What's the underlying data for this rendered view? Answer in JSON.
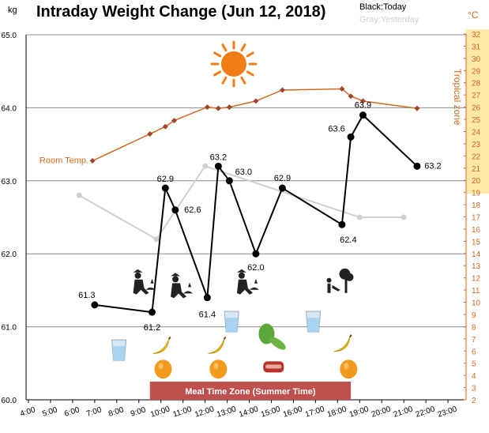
{
  "chart_data": {
    "type": "line",
    "title": "Intraday Weight Change (Jun 12, 2018)",
    "left_unit": "kg",
    "right_unit": "°C",
    "legend": {
      "today": "Black:Today",
      "yesterday": "Gray:Yesterday"
    },
    "left_axis": {
      "range": [
        60.0,
        65.0
      ],
      "ticks": [
        "60.0",
        "61.0",
        "62.0",
        "63.0",
        "64.0",
        "65.0"
      ]
    },
    "right_axis": {
      "range": [
        2,
        32
      ],
      "ticks": [
        "2",
        "3",
        "4",
        "5",
        "6",
        "7",
        "8",
        "9",
        "10",
        "11",
        "12",
        "13",
        "14",
        "15",
        "16",
        "17",
        "18",
        "19",
        "20",
        "21",
        "22",
        "23",
        "24",
        "25",
        "26",
        "27",
        "28",
        "29",
        "30",
        "31",
        "32"
      ]
    },
    "x_axis": {
      "range": [
        4,
        24
      ],
      "ticks": [
        "4:00",
        "5:00",
        "6:00",
        "7:00",
        "8:00",
        "9:00",
        "10:00",
        "11:00",
        "12:00",
        "13:00",
        "14:00",
        "15:00",
        "16:00",
        "17:00",
        "18:00",
        "19:00",
        "20:00",
        "21:00",
        "22:00",
        "23:00"
      ]
    },
    "zones": {
      "tropical": {
        "label": "Tropical zone",
        "from": 18.5,
        "to": 32
      }
    },
    "series": [
      {
        "name": "Today",
        "color": "#000000",
        "points": [
          {
            "x": 7.0,
            "y": 61.3,
            "label": "61.3"
          },
          {
            "x": 9.6,
            "y": 61.2,
            "label": "61.2"
          },
          {
            "x": 10.2,
            "y": 62.9,
            "label": "62.9"
          },
          {
            "x": 10.65,
            "y": 62.6,
            "label": "62.6"
          },
          {
            "x": 12.1,
            "y": 61.4,
            "label": "61.4"
          },
          {
            "x": 12.6,
            "y": 63.2,
            "label": "63.2"
          },
          {
            "x": 13.1,
            "y": 63.0,
            "label": "63.0"
          },
          {
            "x": 14.3,
            "y": 62.0,
            "label": "62.0"
          },
          {
            "x": 15.5,
            "y": 62.9,
            "label": "62.9"
          },
          {
            "x": 18.2,
            "y": 62.4,
            "label": "62.4"
          },
          {
            "x": 18.6,
            "y": 63.6,
            "label": "63.6"
          },
          {
            "x": 19.15,
            "y": 63.9,
            "label": "63.9"
          },
          {
            "x": 21.6,
            "y": 63.2,
            "label": "63.2"
          }
        ]
      },
      {
        "name": "Yesterday",
        "color": "#d0d0d0",
        "points": [
          {
            "x": 6.3,
            "y": 62.8
          },
          {
            "x": 9.8,
            "y": 62.2
          },
          {
            "x": 12.0,
            "y": 63.2
          },
          {
            "x": 19.0,
            "y": 62.5
          },
          {
            "x": 21.0,
            "y": 62.5
          }
        ]
      },
      {
        "name": "Room Temp.",
        "color": "#d2691e",
        "axis": "right",
        "points": [
          {
            "x": 6.9,
            "y": 21.6
          },
          {
            "x": 9.5,
            "y": 23.8
          },
          {
            "x": 10.2,
            "y": 24.4
          },
          {
            "x": 10.6,
            "y": 24.9
          },
          {
            "x": 12.1,
            "y": 26.0
          },
          {
            "x": 12.6,
            "y": 25.9
          },
          {
            "x": 13.1,
            "y": 26.0
          },
          {
            "x": 14.3,
            "y": 26.5
          },
          {
            "x": 15.5,
            "y": 27.4
          },
          {
            "x": 18.2,
            "y": 27.5
          },
          {
            "x": 18.6,
            "y": 26.9
          },
          {
            "x": 19.15,
            "y": 26.5
          },
          {
            "x": 21.6,
            "y": 25.9
          }
        ]
      }
    ],
    "annotations": {
      "room_temp_label": "Room Temp.",
      "mealtime_label": "Meal Time Zone  (Summer Time)",
      "mealtime_zone": [
        9.5,
        18.6
      ]
    },
    "icons": [
      {
        "name": "sun-icon",
        "x": 13.3,
        "y": 64.6
      },
      {
        "name": "gardening-icon",
        "x": 9.1,
        "y": 61.55
      },
      {
        "name": "gardening-icon",
        "x": 10.8,
        "y": 61.5
      },
      {
        "name": "gardening-icon",
        "x": 13.8,
        "y": 61.55
      },
      {
        "name": "tree-watering-icon",
        "x": 17.9,
        "y": 61.55
      },
      {
        "name": "water-glass-icon",
        "x": 8.1,
        "y": 60.68
      },
      {
        "name": "water-glass-icon",
        "x": 13.2,
        "y": 61.07
      },
      {
        "name": "water-glass-icon",
        "x": 16.9,
        "y": 61.07
      },
      {
        "name": "banana-icon",
        "x": 10.0,
        "y": 60.72
      },
      {
        "name": "banana-icon",
        "x": 12.5,
        "y": 60.72
      },
      {
        "name": "banana-icon",
        "x": 18.2,
        "y": 60.75
      },
      {
        "name": "vegetables-icon",
        "x": 15.0,
        "y": 60.86
      },
      {
        "name": "orange-fruit-icon",
        "x": 10.1,
        "y": 60.42
      },
      {
        "name": "orange-fruit-icon",
        "x": 12.6,
        "y": 60.42
      },
      {
        "name": "orange-fruit-icon",
        "x": 18.5,
        "y": 60.42
      },
      {
        "name": "steak-icon",
        "x": 15.1,
        "y": 60.45
      }
    ]
  }
}
